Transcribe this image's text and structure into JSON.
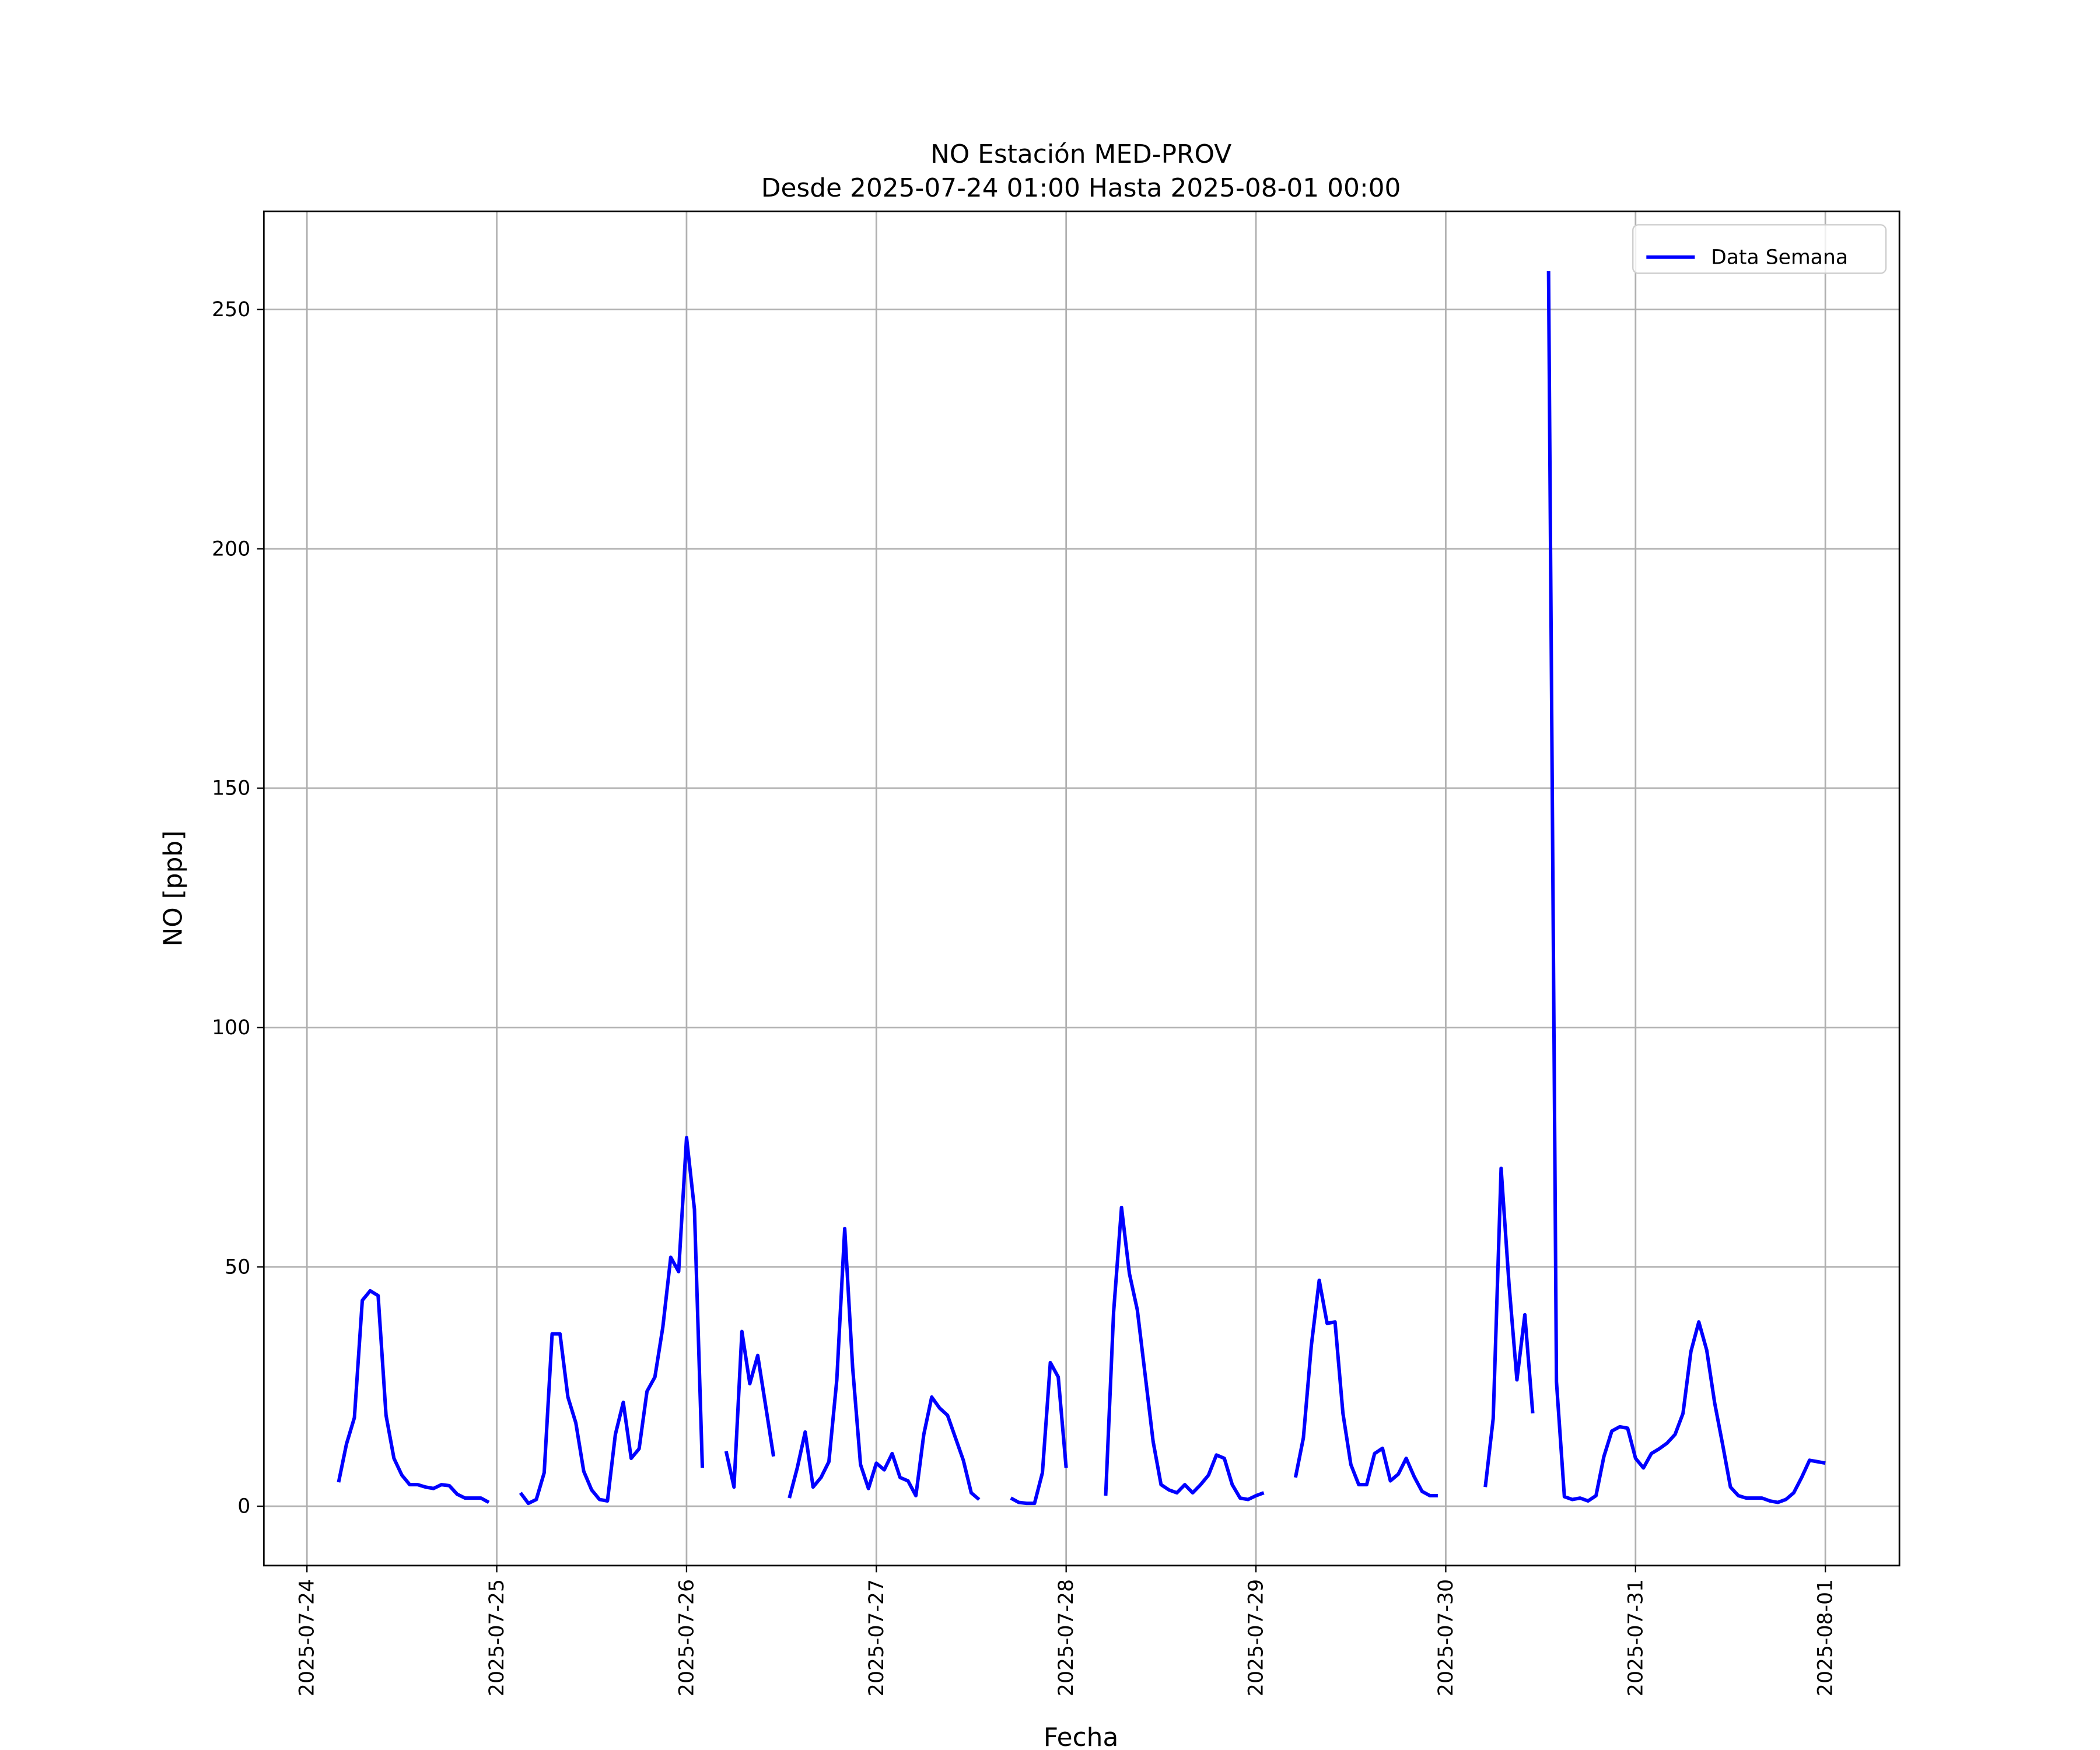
{
  "chart_data": {
    "type": "line",
    "title": "NO Estación MED-PROV",
    "subtitle": "Desde 2025-07-24 01:00 Hasta 2025-08-01 00:00",
    "x_label": "Fecha",
    "y_label": "NO [ppb]",
    "legend": "upper right",
    "grid": true,
    "xlim": [
      "2025-07-23 18:33",
      "2025-08-01 09:22"
    ],
    "xticks": [
      "2025-07-24",
      "2025-07-25",
      "2025-07-26",
      "2025-07-27",
      "2025-07-28",
      "2025-07-29",
      "2025-07-30",
      "2025-07-31",
      "2025-08-01"
    ],
    "ylim": [
      -12.4,
      270.5
    ],
    "yticks": [
      0,
      50,
      100,
      150,
      200,
      250
    ],
    "x": [
      "2025-07-24 01:00",
      "2025-07-24 02:00",
      "2025-07-24 03:00",
      "2025-07-24 04:00",
      "2025-07-24 05:00",
      "2025-07-24 06:00",
      "2025-07-24 07:00",
      "2025-07-24 08:00",
      "2025-07-24 09:00",
      "2025-07-24 10:00",
      "2025-07-24 11:00",
      "2025-07-24 12:00",
      "2025-07-24 13:00",
      "2025-07-24 14:00",
      "2025-07-24 15:00",
      "2025-07-24 16:00",
      "2025-07-24 17:00",
      "2025-07-24 18:00",
      "2025-07-24 19:00",
      "2025-07-24 20:00",
      "2025-07-24 21:00",
      "2025-07-24 22:00",
      "2025-07-24 23:00",
      "2025-07-25 00:00",
      "2025-07-25 01:00",
      "2025-07-25 02:00",
      "2025-07-25 03:00",
      "2025-07-25 04:00",
      "2025-07-25 05:00",
      "2025-07-25 06:00",
      "2025-07-25 07:00",
      "2025-07-25 08:00",
      "2025-07-25 09:00",
      "2025-07-25 10:00",
      "2025-07-25 11:00",
      "2025-07-25 12:00",
      "2025-07-25 13:00",
      "2025-07-25 14:00",
      "2025-07-25 15:00",
      "2025-07-25 16:00",
      "2025-07-25 17:00",
      "2025-07-25 18:00",
      "2025-07-25 19:00",
      "2025-07-25 20:00",
      "2025-07-25 21:00",
      "2025-07-25 22:00",
      "2025-07-25 23:00",
      "2025-07-26 00:00",
      "2025-07-26 01:00",
      "2025-07-26 02:00",
      "2025-07-26 03:00",
      "2025-07-26 04:00",
      "2025-07-26 05:00",
      "2025-07-26 06:00",
      "2025-07-26 07:00",
      "2025-07-26 08:00",
      "2025-07-26 09:00",
      "2025-07-26 10:00",
      "2025-07-26 11:00",
      "2025-07-26 12:00",
      "2025-07-26 13:00",
      "2025-07-26 14:00",
      "2025-07-26 15:00",
      "2025-07-26 16:00",
      "2025-07-26 17:00",
      "2025-07-26 18:00",
      "2025-07-26 19:00",
      "2025-07-26 20:00",
      "2025-07-26 21:00",
      "2025-07-26 22:00",
      "2025-07-26 23:00",
      "2025-07-27 00:00",
      "2025-07-27 01:00",
      "2025-07-27 02:00",
      "2025-07-27 03:00",
      "2025-07-27 04:00",
      "2025-07-27 05:00",
      "2025-07-27 06:00",
      "2025-07-27 07:00",
      "2025-07-27 08:00",
      "2025-07-27 09:00",
      "2025-07-27 10:00",
      "2025-07-27 11:00",
      "2025-07-27 12:00",
      "2025-07-27 13:00",
      "2025-07-27 14:00",
      "2025-07-27 15:00",
      "2025-07-27 16:00",
      "2025-07-27 17:00",
      "2025-07-27 18:00",
      "2025-07-27 19:00",
      "2025-07-27 20:00",
      "2025-07-27 21:00",
      "2025-07-27 22:00",
      "2025-07-27 23:00",
      "2025-07-28 00:00",
      "2025-07-28 01:00",
      "2025-07-28 02:00",
      "2025-07-28 03:00",
      "2025-07-28 04:00",
      "2025-07-28 05:00",
      "2025-07-28 06:00",
      "2025-07-28 07:00",
      "2025-07-28 08:00",
      "2025-07-28 09:00",
      "2025-07-28 10:00",
      "2025-07-28 11:00",
      "2025-07-28 12:00",
      "2025-07-28 13:00",
      "2025-07-28 14:00",
      "2025-07-28 15:00",
      "2025-07-28 16:00",
      "2025-07-28 17:00",
      "2025-07-28 18:00",
      "2025-07-28 19:00",
      "2025-07-28 20:00",
      "2025-07-28 21:00",
      "2025-07-28 22:00",
      "2025-07-28 23:00",
      "2025-07-29 00:00",
      "2025-07-29 01:00",
      "2025-07-29 02:00",
      "2025-07-29 03:00",
      "2025-07-29 04:00",
      "2025-07-29 05:00",
      "2025-07-29 06:00",
      "2025-07-29 07:00",
      "2025-07-29 08:00",
      "2025-07-29 09:00",
      "2025-07-29 10:00",
      "2025-07-29 11:00",
      "2025-07-29 12:00",
      "2025-07-29 13:00",
      "2025-07-29 14:00",
      "2025-07-29 15:00",
      "2025-07-29 16:00",
      "2025-07-29 17:00",
      "2025-07-29 18:00",
      "2025-07-29 19:00",
      "2025-07-29 20:00",
      "2025-07-29 21:00",
      "2025-07-29 22:00",
      "2025-07-29 23:00",
      "2025-07-30 00:00",
      "2025-07-30 01:00",
      "2025-07-30 02:00",
      "2025-07-30 03:00",
      "2025-07-30 04:00",
      "2025-07-30 05:00",
      "2025-07-30 06:00",
      "2025-07-30 07:00",
      "2025-07-30 08:00",
      "2025-07-30 09:00",
      "2025-07-30 10:00",
      "2025-07-30 11:00",
      "2025-07-30 12:00",
      "2025-07-30 13:00",
      "2025-07-30 14:00",
      "2025-07-30 15:00",
      "2025-07-30 16:00",
      "2025-07-30 17:00",
      "2025-07-30 18:00",
      "2025-07-30 19:00",
      "2025-07-30 20:00",
      "2025-07-30 21:00",
      "2025-07-30 22:00",
      "2025-07-30 23:00",
      "2025-07-31 00:00",
      "2025-07-31 01:00",
      "2025-07-31 02:00",
      "2025-07-31 03:00",
      "2025-07-31 04:00",
      "2025-07-31 05:00",
      "2025-07-31 06:00",
      "2025-07-31 07:00",
      "2025-07-31 08:00",
      "2025-07-31 09:00",
      "2025-07-31 10:00",
      "2025-07-31 11:00",
      "2025-07-31 12:00",
      "2025-07-31 13:00",
      "2025-07-31 14:00",
      "2025-07-31 15:00",
      "2025-07-31 16:00",
      "2025-07-31 17:00",
      "2025-07-31 18:00",
      "2025-07-31 19:00",
      "2025-07-31 20:00",
      "2025-07-31 21:00",
      "2025-07-31 22:00",
      "2025-07-31 23:00",
      "2025-08-01 00:00"
    ],
    "series": [
      {
        "name": "Data Semana",
        "color": "#0000ff",
        "values": [
          null,
          null,
          null,
          5,
          13,
          18.5,
          43,
          45,
          44,
          19,
          10,
          6.5,
          4.5,
          4.5,
          4,
          3.7,
          4.5,
          4.3,
          2.5,
          1.7,
          1.7,
          1.7,
          0.8,
          null,
          null,
          null,
          2.8,
          0.6,
          1.4,
          7,
          36,
          36,
          22.8,
          17.4,
          7.3,
          3.4,
          1.4,
          1.1,
          15,
          21.7,
          10,
          12,
          24,
          27,
          37.4,
          52,
          49,
          77,
          62,
          8,
          null,
          null,
          11.5,
          4,
          36.5,
          25.6,
          31.5,
          21,
          10.4,
          null,
          1.7,
          8,
          15.5,
          4,
          6,
          9.3,
          26.4,
          58,
          29,
          8.7,
          3.7,
          9,
          7.6,
          11,
          6,
          5.3,
          2.2,
          15,
          22.8,
          20.5,
          19,
          14.3,
          9.6,
          2.8,
          1.4,
          null,
          null,
          null,
          1.7,
          0.8,
          0.6,
          0.6,
          7,
          30,
          27,
          8,
          null,
          null,
          null,
          null,
          2.2,
          40.5,
          62.4,
          48.6,
          41,
          27.3,
          13.5,
          4.5,
          3.4,
          2.8,
          4.5,
          2.8,
          4.5,
          6.5,
          10.7,
          10,
          4.5,
          1.7,
          1.4,
          2.2,
          2.8,
          null,
          null,
          null,
          6,
          14.3,
          33.5,
          47.2,
          38.2,
          38.5,
          19.4,
          8.7,
          4.5,
          4.5,
          11,
          12.1,
          5.3,
          6.7,
          10,
          6.2,
          3.1,
          2.2,
          2.2,
          null,
          null,
          null,
          null,
          null,
          4,
          18.3,
          70.6,
          46.4,
          26.4,
          40,
          19.4,
          null,
          258,
          26,
          2,
          1.4,
          1.7,
          1.1,
          2.2,
          10.4,
          15.7,
          16.6,
          16.3,
          10,
          8,
          11,
          12,
          13.2,
          15,
          19.4,
          32.3,
          38.5,
          32.6,
          21.6,
          13,
          4,
          2.2,
          1.7,
          1.7,
          1.7,
          1.1,
          0.8,
          1.4,
          2.8,
          6,
          9.6,
          9.3,
          9
        ]
      }
    ]
  }
}
